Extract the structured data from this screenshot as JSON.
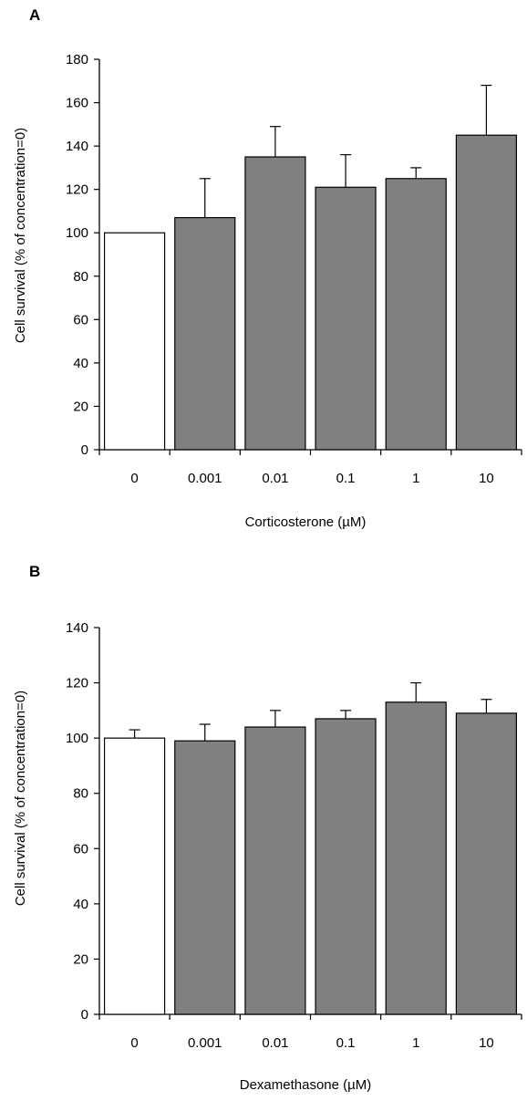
{
  "chart_data": [
    {
      "type": "bar",
      "panel": "A",
      "categories": [
        "0",
        "0.001",
        "0.01",
        "0.1",
        "1",
        "10"
      ],
      "values": [
        100,
        107,
        135,
        121,
        125,
        145
      ],
      "errors": [
        0,
        18,
        14,
        15,
        5,
        23
      ],
      "bar_colors": [
        "#ffffff",
        "#808080",
        "#808080",
        "#808080",
        "#808080",
        "#808080"
      ],
      "xlabel": "Corticosterone (µM)",
      "ylabel": "Cell survival (% of concentration=0)",
      "ylim": [
        0,
        180
      ],
      "yticks": [
        0,
        20,
        40,
        60,
        80,
        100,
        120,
        140,
        160,
        180
      ],
      "grid": false
    },
    {
      "type": "bar",
      "panel": "B",
      "categories": [
        "0",
        "0.001",
        "0.01",
        "0.1",
        "1",
        "10"
      ],
      "values": [
        100,
        99,
        104,
        107,
        113,
        109
      ],
      "errors": [
        3,
        6,
        6,
        3,
        7,
        5
      ],
      "bar_colors": [
        "#ffffff",
        "#808080",
        "#808080",
        "#808080",
        "#808080",
        "#808080"
      ],
      "xlabel": "Dexamethasone (µM)",
      "ylabel": "Cell survival (% of concentration=0)",
      "ylim": [
        0,
        140
      ],
      "yticks": [
        0,
        20,
        40,
        60,
        80,
        100,
        120,
        140
      ],
      "grid": false
    }
  ]
}
